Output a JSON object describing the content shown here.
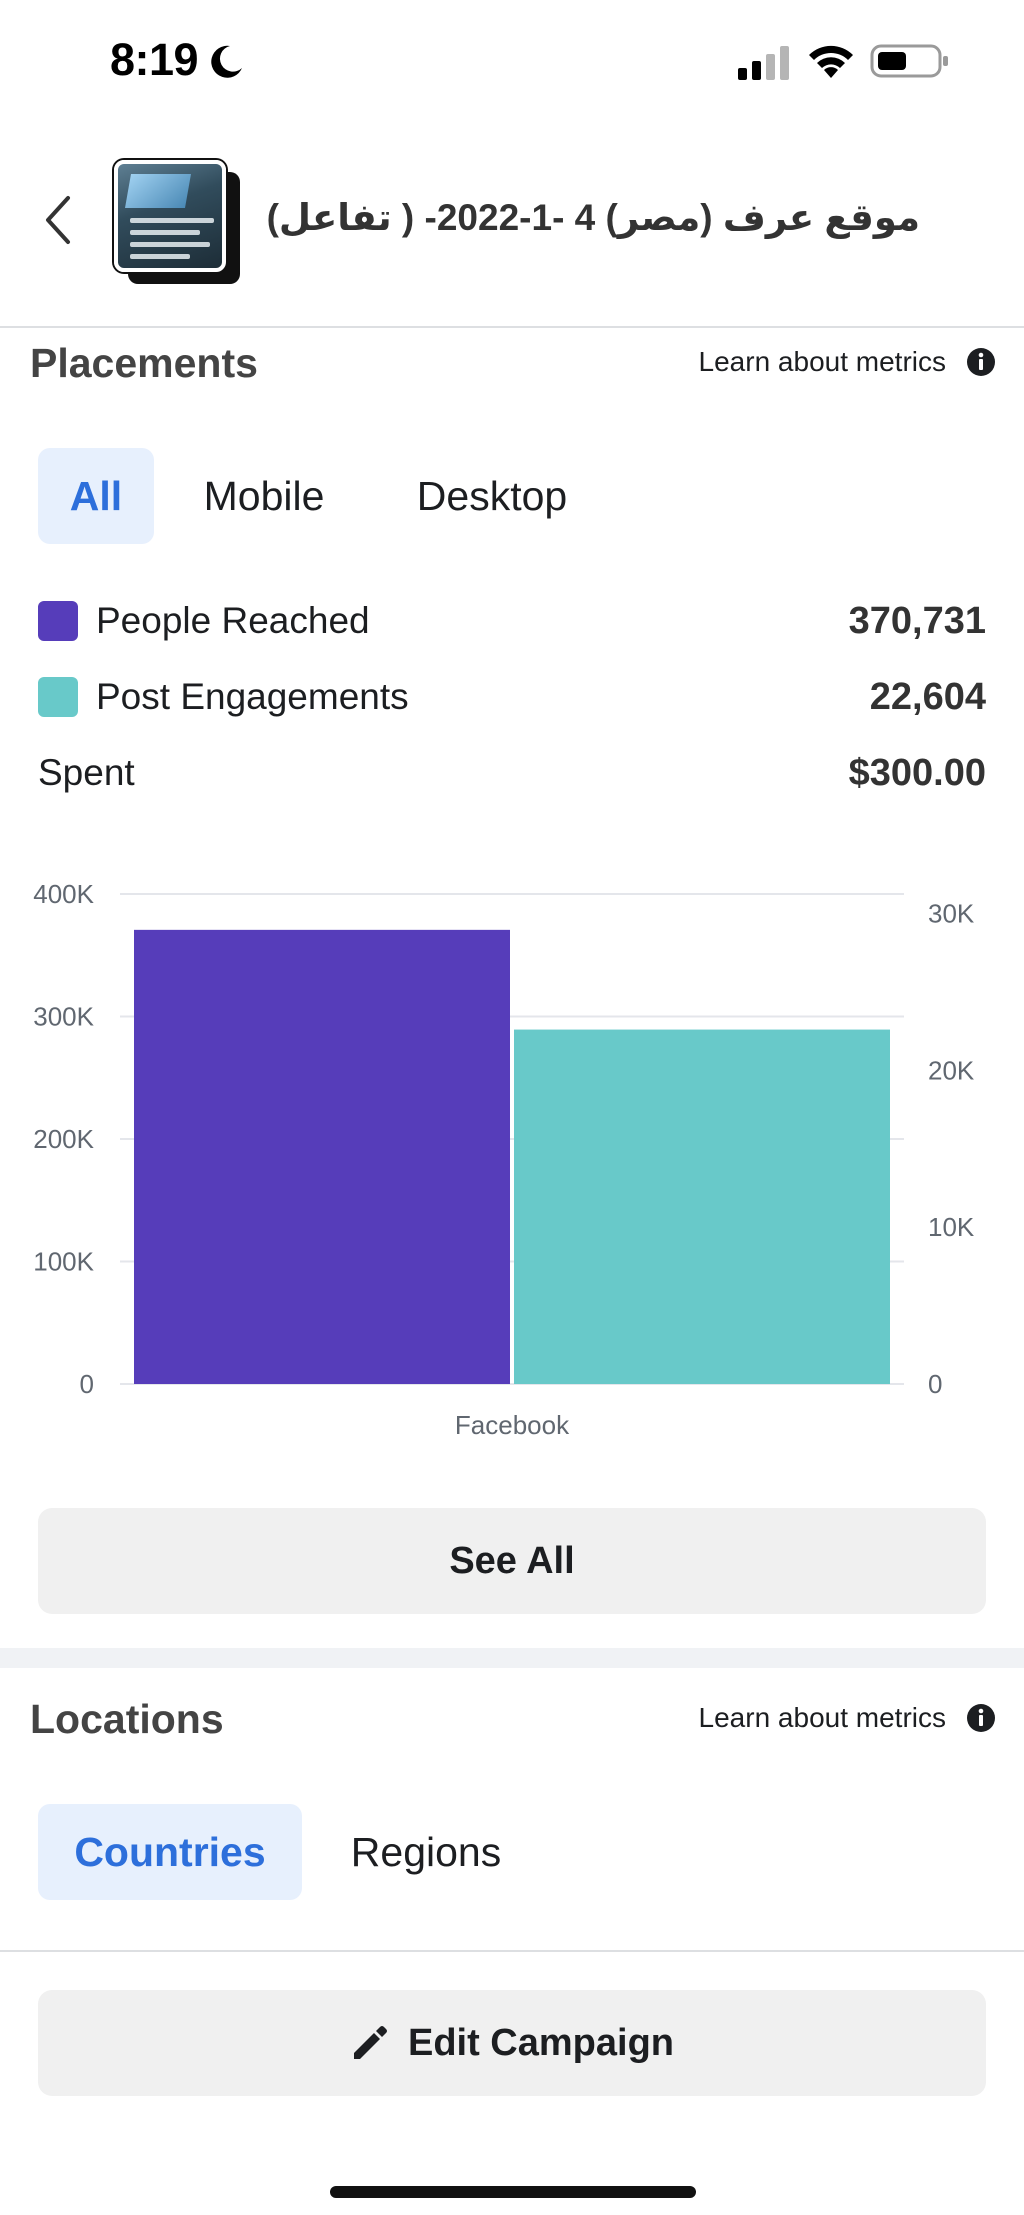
{
  "status_bar": {
    "time": "8:19"
  },
  "header": {
    "campaign_title": "موقع عرف (مصر) 4 -1-2022- ( تفاعل)"
  },
  "placements": {
    "title": "Placements",
    "learn_link": "Learn about metrics",
    "tabs": [
      {
        "label": "All",
        "active": true
      },
      {
        "label": "Mobile",
        "active": false
      },
      {
        "label": "Desktop",
        "active": false
      }
    ],
    "metrics": [
      {
        "label": "People Reached",
        "value": "370,731",
        "color": "#563dba"
      },
      {
        "label": "Post Engagements",
        "value": "22,604",
        "color": "#68c9c9"
      },
      {
        "label": "Spent",
        "value": "$300.00"
      }
    ],
    "see_all_label": "See All"
  },
  "chart_data": {
    "type": "bar",
    "categories": [
      "Facebook"
    ],
    "series": [
      {
        "name": "People Reached",
        "axis": "left",
        "values": [
          370731
        ],
        "color": "#563dba"
      },
      {
        "name": "Post Engagements",
        "axis": "right",
        "values": [
          22604
        ],
        "color": "#68c9c9"
      }
    ],
    "left_axis": {
      "ticks": [
        "0",
        "100K",
        "200K",
        "300K",
        "400K"
      ],
      "range": [
        0,
        400000
      ]
    },
    "right_axis": {
      "ticks": [
        "0",
        "10K",
        "20K",
        "30K"
      ],
      "range": [
        0,
        31250
      ]
    },
    "grid": true
  },
  "locations": {
    "title": "Locations",
    "learn_link": "Learn about metrics",
    "tabs": [
      {
        "label": "Countries",
        "active": true
      },
      {
        "label": "Regions",
        "active": false
      }
    ]
  },
  "footer": {
    "edit_campaign_label": "Edit Campaign"
  }
}
